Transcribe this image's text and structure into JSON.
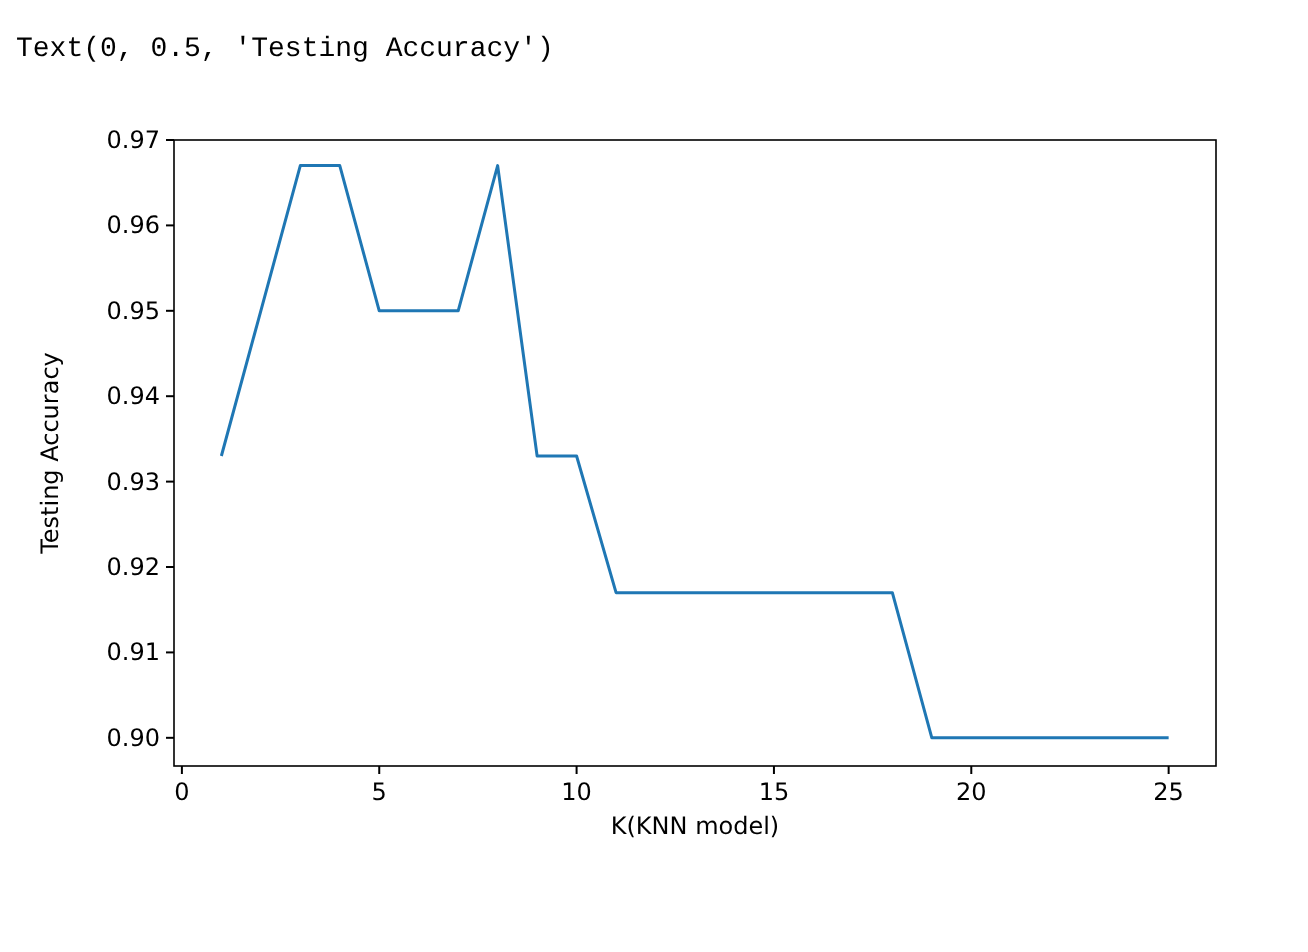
{
  "chart_data": {
    "type": "line",
    "xlabel": "K(KNN model)",
    "ylabel": "Testing Accuracy",
    "annotations": [
      "Text(0, 0.5, 'Testing Accuracy')"
    ],
    "x": [
      1,
      2,
      3,
      4,
      5,
      6,
      7,
      8,
      9,
      10,
      11,
      12,
      13,
      14,
      15,
      16,
      17,
      18,
      19,
      20,
      21,
      22,
      23,
      24,
      25
    ],
    "series": [
      {
        "color": "#1f77b4",
        "values": [
          0.933,
          0.95,
          0.967,
          0.967,
          0.95,
          0.95,
          0.95,
          0.967,
          0.933,
          0.933,
          0.917,
          0.917,
          0.917,
          0.917,
          0.917,
          0.917,
          0.917,
          0.917,
          0.9,
          0.9,
          0.9,
          0.9,
          0.9,
          0.9,
          0.9
        ]
      }
    ],
    "xlim": [
      -0.2,
      26.2
    ],
    "xticks": [
      0,
      5,
      10,
      15,
      20,
      25
    ],
    "ylim": [
      0.8967,
      0.97
    ],
    "yticks": [
      {
        "value": 0.9,
        "label": "0.90"
      },
      {
        "value": 0.91,
        "label": "0.91"
      },
      {
        "value": 0.92,
        "label": "0.92"
      },
      {
        "value": 0.93,
        "label": "0.93"
      },
      {
        "value": 0.94,
        "label": "0.94"
      },
      {
        "value": 0.95,
        "label": "0.95"
      },
      {
        "value": 0.96,
        "label": "0.96"
      },
      {
        "value": 0.97,
        "label": "0.97"
      }
    ],
    "grid": false
  }
}
